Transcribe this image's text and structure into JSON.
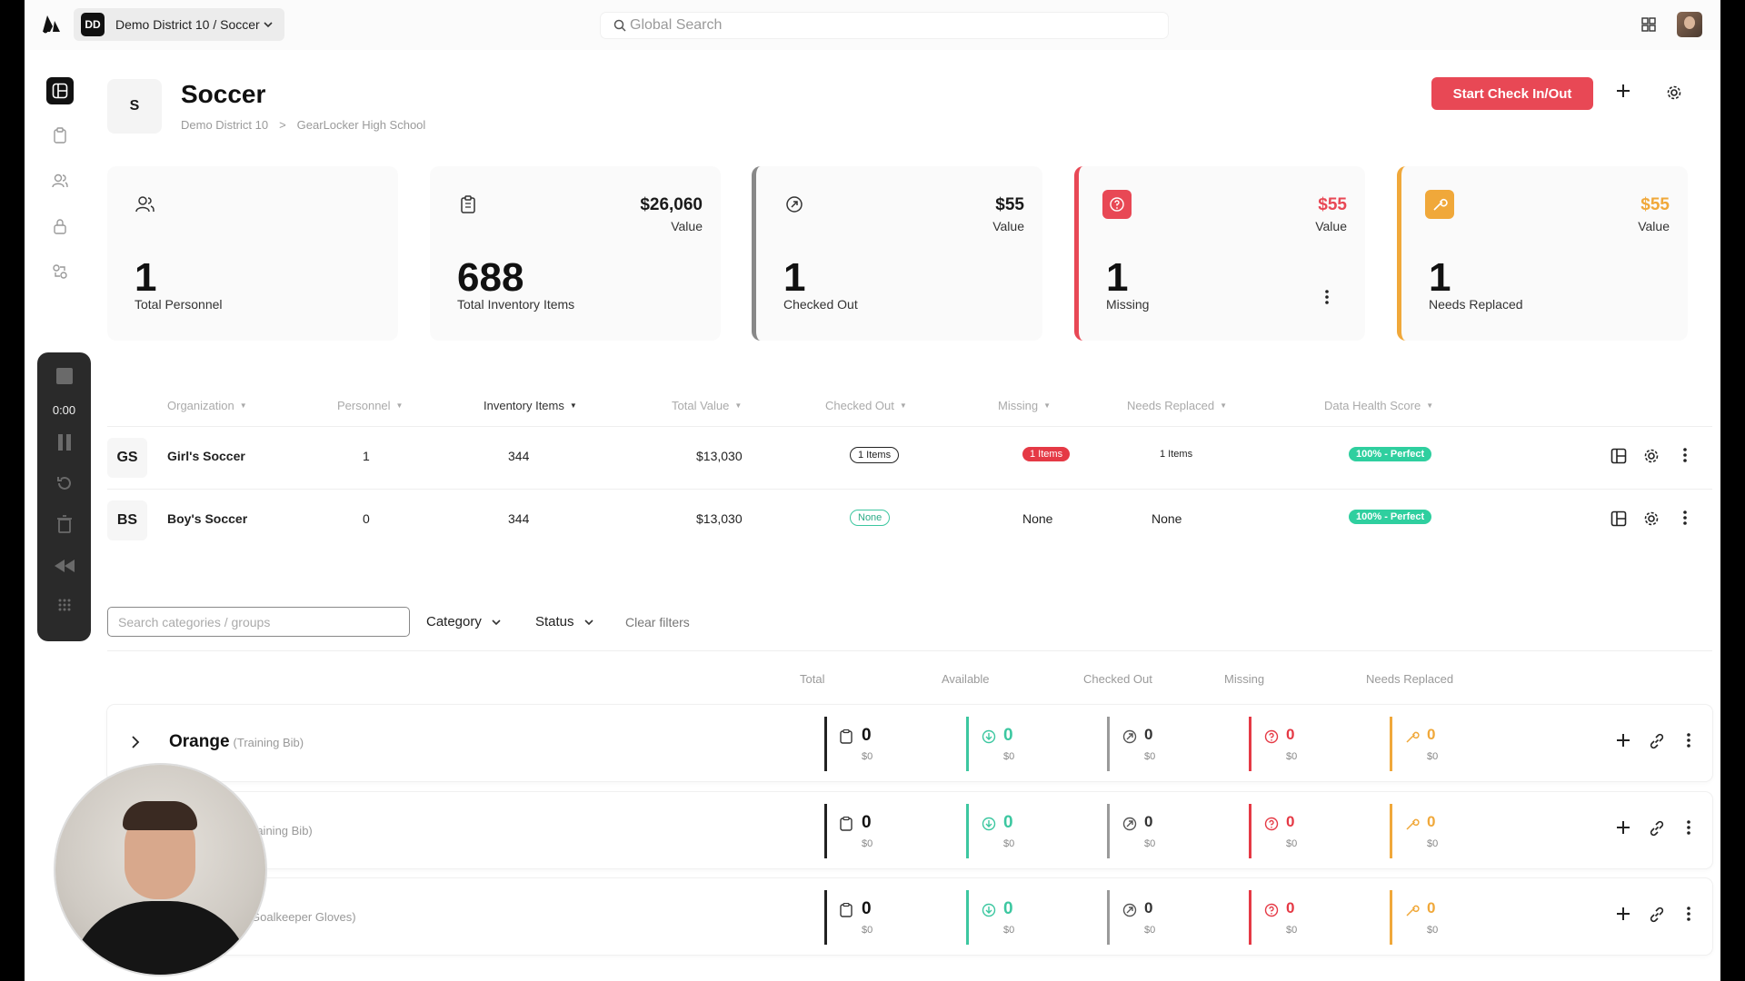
{
  "topbar": {
    "org_badge": "DD",
    "org_name": "Demo District 10 / Soccer",
    "search_placeholder": "Global Search"
  },
  "recorder": {
    "time": "0:00"
  },
  "header": {
    "badge": "S",
    "title": "Soccer",
    "breadcrumb": [
      "Demo District 10",
      ">",
      "GearLocker High School"
    ],
    "primary_button": "Start Check In/Out"
  },
  "stats": [
    {
      "big": "1",
      "label": "Total Personnel",
      "value": "",
      "value_label": "",
      "icon": "users-icon"
    },
    {
      "big": "688",
      "label": "Total Inventory Items",
      "value": "$26,060",
      "value_label": "Value",
      "icon": "clipboard-icon"
    },
    {
      "big": "1",
      "label": "Checked Out",
      "value": "$55",
      "value_label": "Value",
      "icon": "checkout-icon"
    },
    {
      "big": "1",
      "label": "Missing",
      "value": "$55",
      "value_label": "Value",
      "icon": "question-icon",
      "color": "#e84855"
    },
    {
      "big": "1",
      "label": "Needs Replaced",
      "value": "$55",
      "value_label": "Value",
      "icon": "wrench-icon",
      "color": "#f0a83a"
    }
  ],
  "org_table": {
    "headers": [
      "Organization",
      "Personnel",
      "Inventory Items",
      "Total Value",
      "Checked Out",
      "Missing",
      "Needs Replaced",
      "Data Health Score"
    ],
    "rows": [
      {
        "badge": "GS",
        "name": "Girl's Soccer",
        "personnel": "1",
        "items": "344",
        "value": "$13,030",
        "checked_out": "1 Items",
        "missing": "1 Items",
        "needs_replaced": "1 Items",
        "health": "100% - Perfect"
      },
      {
        "badge": "BS",
        "name": "Boy's Soccer",
        "personnel": "0",
        "items": "344",
        "value": "$13,030",
        "checked_out": "None",
        "missing": "None",
        "needs_replaced": "None",
        "health": "100% - Perfect"
      }
    ]
  },
  "filters": {
    "search_placeholder": "Search categories / groups",
    "category": "Category",
    "status": "Status",
    "clear": "Clear filters"
  },
  "category_table": {
    "headers": [
      "Total",
      "Available",
      "Checked Out",
      "Missing",
      "Needs Replaced"
    ],
    "rows": [
      {
        "name": "Orange",
        "sub": "(Training Bib)",
        "total": "0",
        "total_val": "$0",
        "available": "0",
        "available_val": "$0",
        "checked_out": "0",
        "checked_out_val": "$0",
        "missing": "0",
        "missing_val": "$0",
        "needs_replaced": "0",
        "needs_replaced_val": "$0"
      },
      {
        "name": "",
        "sub": "raining Bib)",
        "total": "0",
        "total_val": "$0",
        "available": "0",
        "available_val": "$0",
        "checked_out": "0",
        "checked_out_val": "$0",
        "missing": "0",
        "missing_val": "$0",
        "needs_replaced": "0",
        "needs_replaced_val": "$0"
      },
      {
        "name": "",
        "sub": "Goalkeeper Gloves)",
        "total": "0",
        "total_val": "$0",
        "available": "0",
        "available_val": "$0",
        "checked_out": "0",
        "checked_out_val": "$0",
        "missing": "0",
        "missing_val": "$0",
        "needs_replaced": "0",
        "needs_replaced_val": "$0"
      }
    ]
  },
  "colors": {
    "accent": "#e84855",
    "missing": "#e53945",
    "needs_replaced": "#f0a83a",
    "available": "#3cc7a0"
  }
}
